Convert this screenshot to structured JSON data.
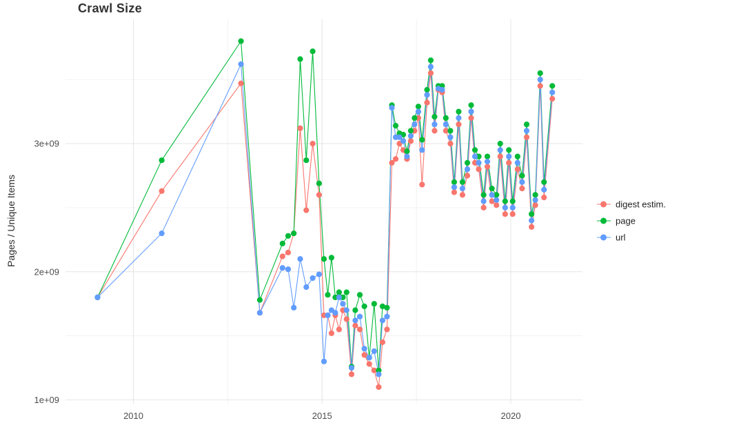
{
  "chart_data": {
    "type": "line",
    "title": "Crawl Size",
    "xlabel": "",
    "ylabel": "Pages / Unique Items",
    "legend_position": "right",
    "grid": true,
    "xlim": [
      2008.2,
      2021.9
    ],
    "ylim": [
      970000000,
      3970000000
    ],
    "x_ticks": [
      {
        "value": 2010,
        "label": "2010"
      },
      {
        "value": 2015,
        "label": "2015"
      },
      {
        "value": 2020,
        "label": "2020"
      }
    ],
    "y_ticks": [
      {
        "value": 1000000000,
        "label": "1e+09"
      },
      {
        "value": 2000000000,
        "label": "2e+09"
      },
      {
        "value": 3000000000,
        "label": "3e+09"
      }
    ],
    "x_minor_ticks": [
      2012.5,
      2017.5
    ],
    "y_minor_ticks": [
      1500000000,
      2500000000,
      3500000000
    ],
    "x": [
      2009.05,
      2010.75,
      2012.85,
      2013.35,
      2013.95,
      2014.1,
      2014.25,
      2014.42,
      2014.58,
      2014.75,
      2014.92,
      2015.05,
      2015.15,
      2015.25,
      2015.35,
      2015.45,
      2015.55,
      2015.65,
      2015.78,
      2015.88,
      2016.0,
      2016.12,
      2016.25,
      2016.38,
      2016.5,
      2016.6,
      2016.72,
      2016.85,
      2016.95,
      2017.05,
      2017.15,
      2017.25,
      2017.35,
      2017.45,
      2017.55,
      2017.65,
      2017.78,
      2017.88,
      2017.98,
      2018.08,
      2018.18,
      2018.28,
      2018.4,
      2018.5,
      2018.62,
      2018.72,
      2018.85,
      2018.95,
      2019.05,
      2019.15,
      2019.28,
      2019.38,
      2019.5,
      2019.62,
      2019.72,
      2019.85,
      2019.95,
      2020.05,
      2020.18,
      2020.3,
      2020.42,
      2020.55,
      2020.65,
      2020.78,
      2020.88,
      2021.1
    ],
    "series": [
      {
        "name": "digest estim.",
        "color": "#F8766D",
        "values": [
          1800000000.0,
          2630000000.0,
          3470000000.0,
          1680000000.0,
          2120000000.0,
          2150000000.0,
          2300000000.0,
          3120000000.0,
          2480000000.0,
          3000000000.0,
          2600000000.0,
          1660000000.0,
          1660000000.0,
          1520000000.0,
          1660000000.0,
          1550000000.0,
          1700000000.0,
          1630000000.0,
          1200000000.0,
          1580000000.0,
          1550000000.0,
          1350000000.0,
          1280000000.0,
          1230000000.0,
          1100000000.0,
          1450000000.0,
          1550000000.0,
          2850000000.0,
          2880000000.0,
          3000000000.0,
          2950000000.0,
          2880000000.0,
          3020000000.0,
          3100000000.0,
          3200000000.0,
          2680000000.0,
          3320000000.0,
          3550000000.0,
          3100000000.0,
          3420000000.0,
          3400000000.0,
          3100000000.0,
          3000000000.0,
          2620000000.0,
          3150000000.0,
          2600000000.0,
          2750000000.0,
          3200000000.0,
          2850000000.0,
          2800000000.0,
          2500000000.0,
          2820000000.0,
          2550000000.0,
          2520000000.0,
          2900000000.0,
          2450000000.0,
          2850000000.0,
          2450000000.0,
          2800000000.0,
          2650000000.0,
          3050000000.0,
          2350000000.0,
          2520000000.0,
          3450000000.0,
          2580000000.0,
          3350000000.0
        ]
      },
      {
        "name": "page",
        "color": "#00BA38",
        "values": [
          1800000000.0,
          2870000000.0,
          3800000000.0,
          1780000000.0,
          2220000000.0,
          2280000000.0,
          2300000000.0,
          3660000000.0,
          2870000000.0,
          3720000000.0,
          2690000000.0,
          2100000000.0,
          1820000000.0,
          2110000000.0,
          1800000000.0,
          1840000000.0,
          1800000000.0,
          1840000000.0,
          1260000000.0,
          1700000000.0,
          1820000000.0,
          1730000000.0,
          1330000000.0,
          1750000000.0,
          1230000000.0,
          1730000000.0,
          1720000000.0,
          3300000000.0,
          3140000000.0,
          3080000000.0,
          3070000000.0,
          2940000000.0,
          3100000000.0,
          3200000000.0,
          3290000000.0,
          3030000000.0,
          3420000000.0,
          3650000000.0,
          3210000000.0,
          3450000000.0,
          3450000000.0,
          3200000000.0,
          3100000000.0,
          2700000000.0,
          3250000000.0,
          2700000000.0,
          2850000000.0,
          3300000000.0,
          2950000000.0,
          2900000000.0,
          2600000000.0,
          2900000000.0,
          2650000000.0,
          2600000000.0,
          3000000000.0,
          2550000000.0,
          2950000000.0,
          2550000000.0,
          2900000000.0,
          2750000000.0,
          3150000000.0,
          2450000000.0,
          2600000000.0,
          3550000000.0,
          2700000000.0,
          3450000000.0
        ]
      },
      {
        "name": "url",
        "color": "#619CFF",
        "values": [
          1800000000.0,
          2300000000.0,
          3620000000.0,
          1680000000.0,
          2030000000.0,
          2020000000.0,
          1720000000.0,
          2100000000.0,
          1880000000.0,
          1950000000.0,
          1980000000.0,
          1300000000.0,
          1660000000.0,
          1700000000.0,
          1680000000.0,
          1800000000.0,
          1750000000.0,
          1700000000.0,
          1250000000.0,
          1620000000.0,
          1650000000.0,
          1400000000.0,
          1330000000.0,
          1380000000.0,
          1200000000.0,
          1620000000.0,
          1650000000.0,
          3280000000.0,
          3050000000.0,
          3050000000.0,
          3020000000.0,
          2900000000.0,
          3060000000.0,
          3150000000.0,
          3250000000.0,
          2950000000.0,
          3380000000.0,
          3600000000.0,
          3150000000.0,
          3430000000.0,
          3420000000.0,
          3150000000.0,
          3050000000.0,
          2660000000.0,
          3200000000.0,
          2650000000.0,
          2800000000.0,
          3250000000.0,
          2900000000.0,
          2850000000.0,
          2550000000.0,
          2860000000.0,
          2600000000.0,
          2560000000.0,
          2950000000.0,
          2500000000.0,
          2900000000.0,
          2500000000.0,
          2850000000.0,
          2700000000.0,
          3100000000.0,
          2400000000.0,
          2560000000.0,
          3500000000.0,
          2640000000.0,
          3400000000.0
        ]
      }
    ]
  }
}
